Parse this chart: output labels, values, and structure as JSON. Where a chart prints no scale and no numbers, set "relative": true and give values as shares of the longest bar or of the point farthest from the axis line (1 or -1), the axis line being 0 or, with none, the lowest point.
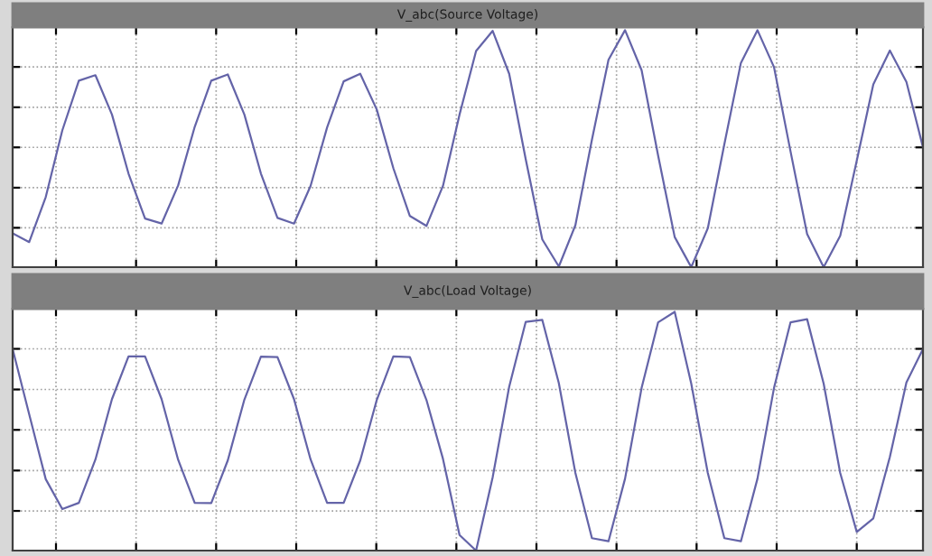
{
  "chart_data": [
    {
      "type": "line",
      "title": "V_abc(Source Voltage)",
      "relative": true,
      "grid": true,
      "marker": "none",
      "line_style": "solid",
      "categories": [
        null,
        null,
        null,
        null,
        null,
        null,
        null,
        null,
        null,
        null,
        null,
        null,
        null,
        null,
        null,
        null,
        null,
        null,
        null,
        null,
        null,
        null,
        null,
        null,
        null,
        null,
        null,
        null,
        null,
        null,
        null,
        null,
        null,
        null,
        null,
        null,
        null,
        null,
        null,
        null,
        null,
        null,
        null,
        null,
        null,
        null,
        null,
        null,
        null,
        null,
        null,
        null,
        null,
        null,
        null,
        null
      ],
      "series": [
        {
          "color": "#6464a8",
          "values": [
            0.143,
            0.106,
            0.296,
            0.577,
            0.787,
            0.81,
            0.644,
            0.395,
            0.205,
            0.184,
            0.345,
            0.592,
            0.787,
            0.813,
            0.644,
            0.395,
            0.208,
            0.184,
            0.343,
            0.59,
            0.784,
            0.816,
            0.665,
            0.418,
            0.216,
            0.174,
            0.343,
            0.644,
            0.912,
            0.997,
            0.816,
            0.455,
            0.117,
            0.003,
            0.177,
            0.538,
            0.875,
            1,
            0.831,
            0.47,
            0.127,
            0,
            0.164,
            0.519,
            0.862,
            1,
            0.844,
            0.488,
            0.14,
            0,
            0.132,
            0.449,
            0.771,
            0.914,
            0.782,
            0.506
          ]
        }
      ]
    },
    {
      "type": "line",
      "title": "V_abc(Load Voltage)",
      "relative": true,
      "grid": true,
      "marker": "none",
      "line_style": "solid",
      "categories": [
        null,
        null,
        null,
        null,
        null,
        null,
        null,
        null,
        null,
        null,
        null,
        null,
        null,
        null,
        null,
        null,
        null,
        null,
        null,
        null,
        null,
        null,
        null,
        null,
        null,
        null,
        null,
        null,
        null,
        null,
        null,
        null,
        null,
        null,
        null,
        null,
        null,
        null,
        null,
        null,
        null,
        null,
        null,
        null,
        null,
        null,
        null,
        null,
        null,
        null,
        null,
        null,
        null,
        null,
        null,
        null
      ],
      "series": [
        {
          "color": "#6464a8",
          "values": [
            0.844,
            0.571,
            0.299,
            0.174,
            0.2,
            0.381,
            0.634,
            0.813,
            0.813,
            0.634,
            0.38,
            0.2,
            0.199,
            0.378,
            0.632,
            0.812,
            0.81,
            0.634,
            0.382,
            0.2,
            0.2,
            0.377,
            0.631,
            0.813,
            0.81,
            0.631,
            0.384,
            0.065,
            0,
            0.306,
            0.686,
            0.958,
            0.966,
            0.701,
            0.325,
            0.052,
            0.039,
            0.301,
            0.681,
            0.956,
            1,
            0.699,
            0.325,
            0.052,
            0.039,
            0.301,
            0.681,
            0.956,
            0.969,
            0.699,
            0.325,
            0.078,
            0.135,
            0.392,
            0.704,
            0.844
          ]
        }
      ]
    }
  ]
}
